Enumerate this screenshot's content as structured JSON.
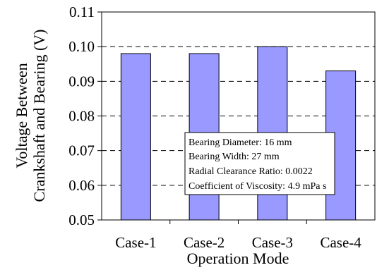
{
  "chart_data": {
    "type": "bar",
    "categories": [
      "Case-1",
      "Case-2",
      "Case-3",
      "Case-4"
    ],
    "values": [
      0.098,
      0.098,
      0.1,
      0.093
    ],
    "xlabel": "Operation Mode",
    "ylabel_lines": [
      "Voltage Between",
      "Crankshaft and Bearing (V)"
    ],
    "ylim": [
      0.05,
      0.11
    ],
    "yticks": [
      "0.05",
      "0.06",
      "0.07",
      "0.08",
      "0.09",
      "0.10",
      "0.11"
    ],
    "grid": "horizontal dashed",
    "bar_color": "#9999ff",
    "annotation_lines": [
      "Bearing Diameter: 16 mm",
      "Bearing Width: 27 mm",
      "Radial Clearance Ratio: 0.0022",
      "Coefficient of Viscosity: 4.9 mPa s"
    ]
  }
}
